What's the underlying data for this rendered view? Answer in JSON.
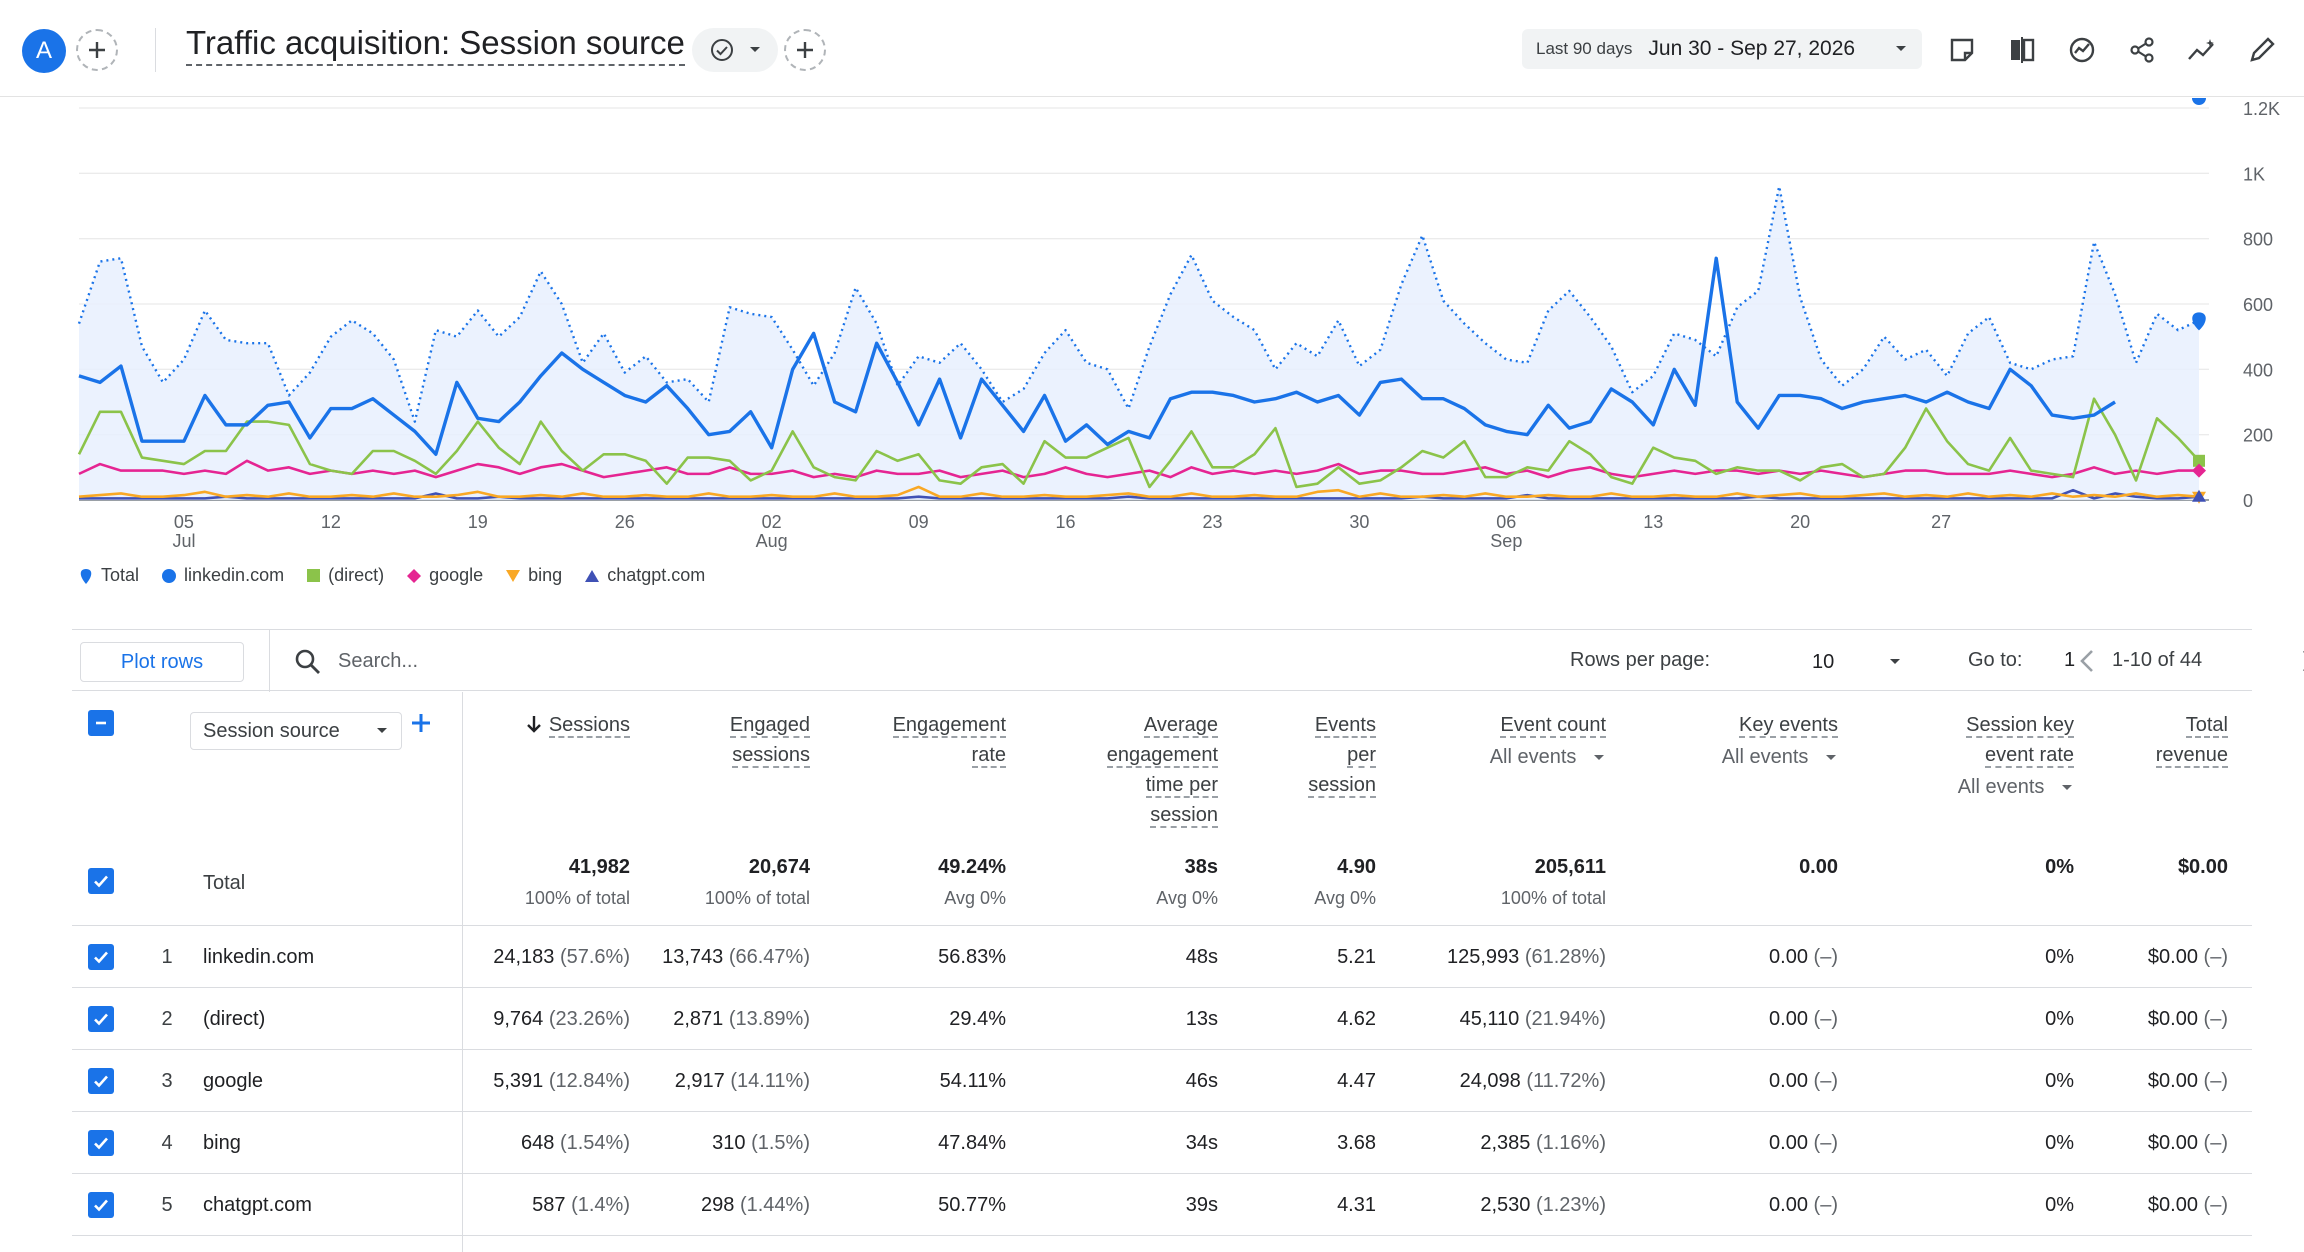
{
  "header": {
    "avatar_letter": "A",
    "title": "Traffic acquisition: Session source",
    "date_label": "Last 90 days",
    "date_range": "Jun 30 - Sep 27, 2026"
  },
  "chart_data": {
    "type": "line",
    "ylim": [
      0,
      1200
    ],
    "y_ticks": [
      "0",
      "200",
      "400",
      "600",
      "800",
      "1K",
      "1.2K"
    ],
    "x_ticks": [
      {
        "day": "05",
        "month": "Jul"
      },
      {
        "day": "12",
        "month": ""
      },
      {
        "day": "19",
        "month": ""
      },
      {
        "day": "26",
        "month": ""
      },
      {
        "day": "02",
        "month": "Aug"
      },
      {
        "day": "09",
        "month": ""
      },
      {
        "day": "16",
        "month": ""
      },
      {
        "day": "23",
        "month": ""
      },
      {
        "day": "30",
        "month": ""
      },
      {
        "day": "06",
        "month": "Sep"
      },
      {
        "day": "13",
        "month": ""
      },
      {
        "day": "20",
        "month": ""
      },
      {
        "day": "27",
        "month": ""
      }
    ],
    "series": [
      {
        "name": "Total",
        "color": "#1a73e8",
        "style": "dotted",
        "values": [
          540,
          730,
          740,
          470,
          360,
          430,
          580,
          490,
          480,
          480,
          320,
          390,
          500,
          550,
          510,
          430,
          240,
          520,
          500,
          580,
          500,
          560,
          700,
          600,
          420,
          510,
          390,
          440,
          360,
          370,
          300,
          590,
          570,
          560,
          460,
          350,
          450,
          650,
          540,
          350,
          440,
          420,
          480,
          400,
          300,
          340,
          450,
          520,
          420,
          400,
          280,
          470,
          630,
          750,
          610,
          560,
          520,
          400,
          480,
          440,
          550,
          410,
          460,
          660,
          810,
          610,
          540,
          480,
          430,
          420,
          580,
          640,
          560,
          470,
          330,
          380,
          510,
          490,
          440,
          590,
          640,
          960,
          620,
          430,
          350,
          400,
          500,
          430,
          460,
          380,
          510,
          560,
          420,
          400,
          430,
          440,
          790,
          630,
          420,
          570,
          520,
          550
        ]
      },
      {
        "name": "linkedin.com",
        "color": "#1a73e8",
        "style": "solid",
        "values": [
          380,
          360,
          410,
          180,
          180,
          180,
          320,
          230,
          230,
          290,
          300,
          190,
          280,
          280,
          310,
          260,
          210,
          140,
          360,
          250,
          240,
          300,
          380,
          450,
          400,
          360,
          320,
          300,
          350,
          280,
          200,
          210,
          270,
          160,
          400,
          510,
          300,
          270,
          480,
          360,
          230,
          370,
          190,
          370,
          290,
          210,
          320,
          180,
          230,
          170,
          210,
          190,
          310,
          330,
          330,
          320,
          300,
          310,
          330,
          300,
          320,
          260,
          360,
          370,
          310,
          310,
          280,
          230,
          210,
          200,
          290,
          220,
          240,
          340,
          300,
          230,
          400,
          290,
          740,
          300,
          220,
          320,
          320,
          310,
          280,
          300,
          310,
          320,
          300,
          330,
          300,
          280,
          400,
          350,
          260,
          250,
          260,
          300
        ]
      },
      {
        "name": "(direct)",
        "color": "#8bc34a",
        "style": "solid",
        "values": [
          140,
          270,
          270,
          130,
          120,
          110,
          150,
          150,
          240,
          240,
          230,
          110,
          90,
          80,
          150,
          150,
          120,
          80,
          150,
          240,
          160,
          110,
          240,
          150,
          90,
          140,
          140,
          120,
          50,
          130,
          130,
          120,
          60,
          90,
          210,
          100,
          70,
          60,
          150,
          120,
          140,
          60,
          50,
          100,
          110,
          50,
          180,
          130,
          130,
          160,
          190,
          40,
          120,
          210,
          100,
          100,
          140,
          220,
          40,
          50,
          100,
          50,
          60,
          100,
          150,
          130,
          180,
          70,
          70,
          100,
          90,
          180,
          140,
          70,
          50,
          160,
          130,
          120,
          80,
          100,
          90,
          90,
          60,
          100,
          110,
          70,
          80,
          160,
          280,
          180,
          110,
          90,
          190,
          90,
          80,
          70,
          310,
          200,
          60,
          250,
          190,
          120
        ]
      },
      {
        "name": "google",
        "color": "#e52592",
        "style": "solid",
        "values": [
          80,
          110,
          90,
          90,
          90,
          80,
          90,
          80,
          120,
          90,
          100,
          80,
          90,
          80,
          90,
          80,
          90,
          70,
          90,
          110,
          100,
          80,
          100,
          110,
          90,
          70,
          80,
          90,
          100,
          80,
          80,
          100,
          80,
          80,
          90,
          70,
          80,
          70,
          90,
          80,
          80,
          90,
          70,
          80,
          90,
          70,
          80,
          100,
          80,
          70,
          80,
          90,
          70,
          100,
          80,
          90,
          80,
          90,
          80,
          90,
          110,
          80,
          90,
          90,
          80,
          80,
          90,
          100,
          80,
          90,
          70,
          90,
          100,
          80,
          70,
          80,
          90,
          80,
          90,
          90,
          80,
          90,
          80,
          90,
          80,
          70,
          80,
          90,
          90,
          80,
          80,
          80,
          90,
          80,
          70,
          80,
          100,
          80,
          90,
          80,
          90,
          90
        ]
      },
      {
        "name": "bing",
        "color": "#f9a825",
        "style": "solid",
        "values": [
          10,
          15,
          20,
          10,
          10,
          15,
          25,
          10,
          15,
          10,
          20,
          10,
          10,
          15,
          10,
          20,
          10,
          10,
          15,
          25,
          10,
          10,
          15,
          10,
          20,
          10,
          10,
          15,
          10,
          10,
          20,
          10,
          10,
          15,
          10,
          10,
          20,
          10,
          10,
          15,
          40,
          10,
          10,
          20,
          10,
          10,
          15,
          10,
          10,
          15,
          20,
          10,
          10,
          20,
          10,
          10,
          15,
          10,
          10,
          25,
          30,
          10,
          20,
          10,
          10,
          15,
          10,
          20,
          10,
          10,
          15,
          10,
          10,
          20,
          10,
          10,
          15,
          10,
          10,
          20,
          10,
          15,
          20,
          10,
          10,
          15,
          20,
          10,
          15,
          10,
          20,
          10,
          15,
          10,
          20,
          10,
          15,
          10,
          20,
          10,
          15,
          10
        ]
      },
      {
        "name": "chatgpt.com",
        "color": "#3f51b5",
        "style": "solid",
        "values": [
          5,
          5,
          5,
          5,
          5,
          5,
          5,
          10,
          5,
          5,
          5,
          5,
          5,
          5,
          5,
          5,
          5,
          20,
          5,
          5,
          10,
          5,
          5,
          5,
          5,
          5,
          5,
          5,
          5,
          5,
          5,
          5,
          5,
          5,
          5,
          5,
          5,
          5,
          5,
          5,
          10,
          5,
          5,
          5,
          5,
          5,
          5,
          5,
          5,
          5,
          10,
          5,
          5,
          5,
          5,
          5,
          5,
          5,
          5,
          5,
          5,
          5,
          5,
          5,
          10,
          5,
          5,
          5,
          5,
          15,
          5,
          5,
          5,
          5,
          5,
          5,
          5,
          5,
          5,
          5,
          10,
          5,
          5,
          5,
          5,
          5,
          5,
          5,
          5,
          5,
          5,
          5,
          5,
          5,
          5,
          30,
          5,
          20,
          10,
          5,
          5,
          10
        ]
      }
    ]
  },
  "legend": [
    {
      "name": "Total",
      "color": "#1a73e8",
      "icon": "pin-icon"
    },
    {
      "name": "linkedin.com",
      "color": "#1a73e8",
      "icon": "circle-icon"
    },
    {
      "name": "(direct)",
      "color": "#8bc34a",
      "icon": "square-icon"
    },
    {
      "name": "google",
      "color": "#e52592",
      "icon": "diamond-icon"
    },
    {
      "name": "bing",
      "color": "#f9a825",
      "icon": "triangle-down-icon"
    },
    {
      "name": "chatgpt.com",
      "color": "#3f51b5",
      "icon": "triangle-up-icon"
    }
  ],
  "toolbar": {
    "plot_rows": "Plot rows",
    "search_placeholder": "Search...",
    "rows_per_page_label": "Rows per page:",
    "rows_per_page": "10",
    "goto_label": "Go to:",
    "goto_value": "1",
    "pager": "1-10 of 44"
  },
  "table": {
    "dimension": "Session source",
    "columns": [
      {
        "lines": [
          "Sessions"
        ],
        "sub": "",
        "sorted": true
      },
      {
        "lines": [
          "Engaged",
          "sessions"
        ],
        "sub": ""
      },
      {
        "lines": [
          "Engagement",
          "rate"
        ],
        "sub": ""
      },
      {
        "lines": [
          "Average",
          "engagement",
          "time per",
          "session"
        ],
        "sub": ""
      },
      {
        "lines": [
          "Events",
          "per",
          "session"
        ],
        "sub": ""
      },
      {
        "lines": [
          "Event count"
        ],
        "sub": "All events"
      },
      {
        "lines": [
          "Key events"
        ],
        "sub": "All events"
      },
      {
        "lines": [
          "Session key",
          "event rate"
        ],
        "sub": "All events"
      },
      {
        "lines": [
          "Total",
          "revenue"
        ],
        "sub": ""
      }
    ],
    "total": {
      "label": "Total",
      "values": [
        "41,982",
        "20,674",
        "49.24%",
        "38s",
        "4.90",
        "205,611",
        "0.00",
        "0%",
        "$0.00"
      ],
      "subs": [
        "100% of total",
        "100% of total",
        "Avg 0%",
        "Avg 0%",
        "Avg 0%",
        "100% of total",
        "",
        "",
        ""
      ]
    },
    "rows": [
      {
        "num": "1",
        "name": "linkedin.com",
        "cells": [
          [
            "24,183",
            "(57.6%)"
          ],
          [
            "13,743",
            "(66.47%)"
          ],
          [
            "56.83%",
            ""
          ],
          [
            "48s",
            ""
          ],
          [
            "5.21",
            ""
          ],
          [
            "125,993",
            "(61.28%)"
          ],
          [
            "0.00",
            "(–)"
          ],
          [
            "0%",
            ""
          ],
          [
            "$0.00",
            "(–)"
          ]
        ]
      },
      {
        "num": "2",
        "name": "(direct)",
        "cells": [
          [
            "9,764",
            "(23.26%)"
          ],
          [
            "2,871",
            "(13.89%)"
          ],
          [
            "29.4%",
            ""
          ],
          [
            "13s",
            ""
          ],
          [
            "4.62",
            ""
          ],
          [
            "45,110",
            "(21.94%)"
          ],
          [
            "0.00",
            "(–)"
          ],
          [
            "0%",
            ""
          ],
          [
            "$0.00",
            "(–)"
          ]
        ]
      },
      {
        "num": "3",
        "name": "google",
        "cells": [
          [
            "5,391",
            "(12.84%)"
          ],
          [
            "2,917",
            "(14.11%)"
          ],
          [
            "54.11%",
            ""
          ],
          [
            "46s",
            ""
          ],
          [
            "4.47",
            ""
          ],
          [
            "24,098",
            "(11.72%)"
          ],
          [
            "0.00",
            "(–)"
          ],
          [
            "0%",
            ""
          ],
          [
            "$0.00",
            "(–)"
          ]
        ]
      },
      {
        "num": "4",
        "name": "bing",
        "cells": [
          [
            "648",
            "(1.54%)"
          ],
          [
            "310",
            "(1.5%)"
          ],
          [
            "47.84%",
            ""
          ],
          [
            "34s",
            ""
          ],
          [
            "3.68",
            ""
          ],
          [
            "2,385",
            "(1.16%)"
          ],
          [
            "0.00",
            "(–)"
          ],
          [
            "0%",
            ""
          ],
          [
            "$0.00",
            "(–)"
          ]
        ]
      },
      {
        "num": "5",
        "name": "chatgpt.com",
        "cells": [
          [
            "587",
            "(1.4%)"
          ],
          [
            "298",
            "(1.44%)"
          ],
          [
            "50.77%",
            ""
          ],
          [
            "39s",
            ""
          ],
          [
            "4.31",
            ""
          ],
          [
            "2,530",
            "(1.23%)"
          ],
          [
            "0.00",
            "(–)"
          ],
          [
            "0%",
            ""
          ],
          [
            "$0.00",
            "(–)"
          ]
        ]
      }
    ]
  }
}
